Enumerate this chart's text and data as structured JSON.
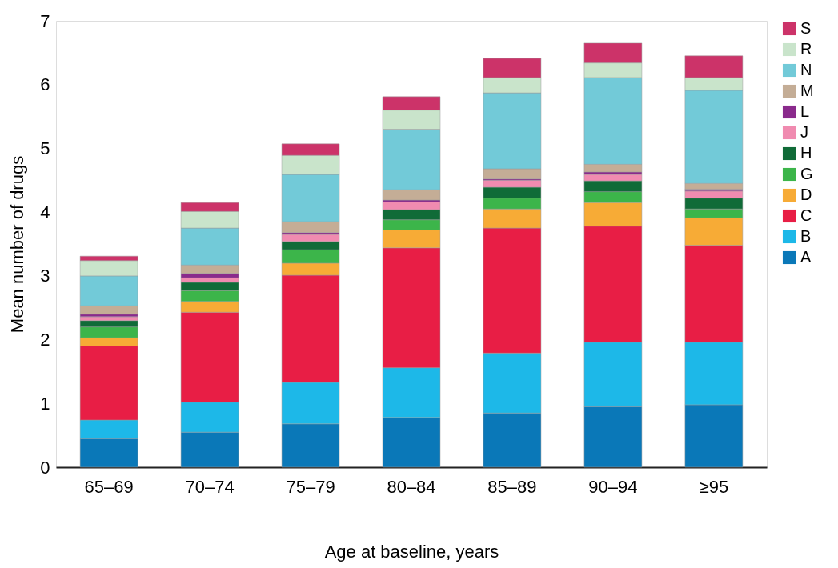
{
  "chart_data": {
    "type": "bar",
    "stacked": true,
    "xlabel": "Age at baseline, years",
    "ylabel": "Mean number of drugs",
    "categories": [
      "65–69",
      "70–74",
      "75–79",
      "80–84",
      "85–89",
      "90–94",
      "≥95"
    ],
    "ylim": [
      0,
      7
    ],
    "yticks": [
      0,
      1,
      2,
      3,
      4,
      5,
      6,
      7
    ],
    "grid": false,
    "legend": "right",
    "series": [
      {
        "name": "A",
        "color": "#0a78b8",
        "values": [
          0.45,
          0.55,
          0.68,
          0.78,
          0.85,
          0.95,
          0.98
        ]
      },
      {
        "name": "B",
        "color": "#1db8e8",
        "values": [
          0.29,
          0.47,
          0.65,
          0.78,
          0.94,
          1.01,
          0.98
        ]
      },
      {
        "name": "C",
        "color": "#e81e45",
        "values": [
          1.16,
          1.41,
          1.68,
          1.88,
          1.96,
          1.82,
          1.52
        ]
      },
      {
        "name": "D",
        "color": "#f7ab36",
        "values": [
          0.13,
          0.17,
          0.19,
          0.28,
          0.3,
          0.37,
          0.43
        ]
      },
      {
        "name": "G",
        "color": "#3cb54a",
        "values": [
          0.17,
          0.17,
          0.21,
          0.16,
          0.17,
          0.17,
          0.14
        ]
      },
      {
        "name": "H",
        "color": "#106b38",
        "values": [
          0.1,
          0.13,
          0.13,
          0.16,
          0.17,
          0.17,
          0.17
        ]
      },
      {
        "name": "J",
        "color": "#f08bb0",
        "values": [
          0.06,
          0.07,
          0.11,
          0.12,
          0.11,
          0.1,
          0.11
        ]
      },
      {
        "name": "L",
        "color": "#8a2a8c",
        "values": [
          0.04,
          0.07,
          0.03,
          0.03,
          0.02,
          0.04,
          0.03
        ]
      },
      {
        "name": "M",
        "color": "#c4ad96",
        "values": [
          0.13,
          0.13,
          0.17,
          0.16,
          0.16,
          0.12,
          0.09
        ]
      },
      {
        "name": "N",
        "color": "#72cad8",
        "values": [
          0.47,
          0.58,
          0.74,
          0.95,
          1.19,
          1.36,
          1.46
        ]
      },
      {
        "name": "R",
        "color": "#c9e4cb",
        "values": [
          0.24,
          0.26,
          0.3,
          0.3,
          0.24,
          0.23,
          0.2
        ]
      },
      {
        "name": "S",
        "color": "#cc3369",
        "values": [
          0.07,
          0.14,
          0.18,
          0.21,
          0.3,
          0.31,
          0.34
        ]
      }
    ]
  }
}
